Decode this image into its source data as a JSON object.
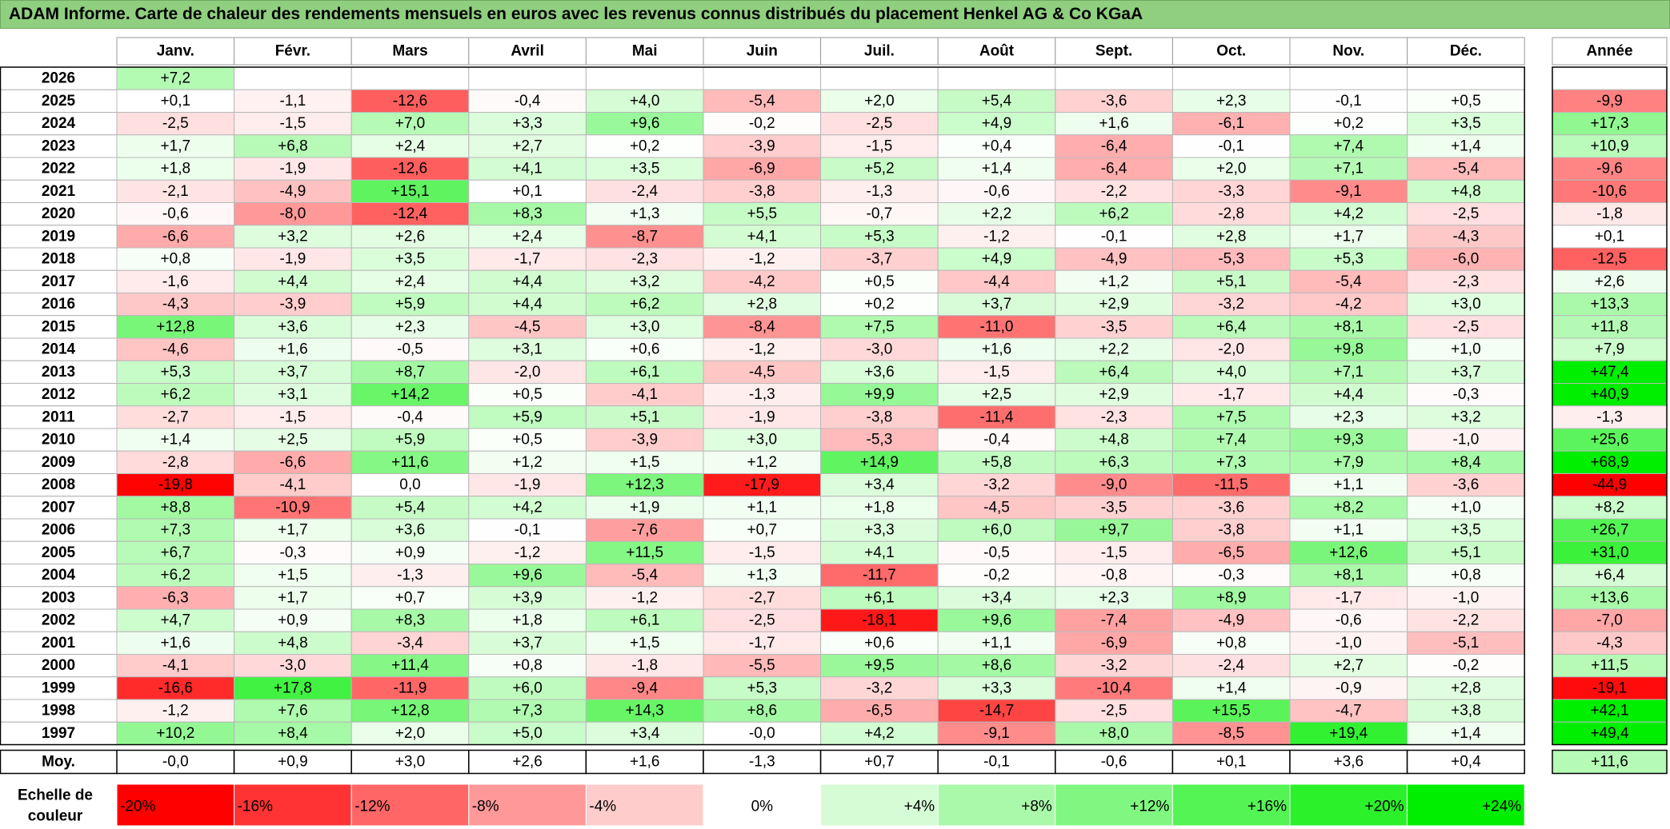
{
  "title": "ADAM Informe. Carte de chaleur des rendements mensuels en euros avec les revenus connus distribués du placement Henkel AG & Co KGaA",
  "chart_data": {
    "type": "heatmap",
    "title": "ADAM Informe. Carte de chaleur des rendements mensuels en euros avec les revenus connus distribués du placement Henkel AG & Co KGaA",
    "months": [
      "Janv.",
      "Févr.",
      "Mars",
      "Avril",
      "Mai",
      "Juin",
      "Juil.",
      "Août",
      "Sept.",
      "Oct.",
      "Nov.",
      "Déc."
    ],
    "year_header": "Année",
    "rows": [
      {
        "year": "2026",
        "values": [
          "+7,2",
          "",
          "",
          "",
          "",
          "",
          "",
          "",
          "",
          "",
          "",
          ""
        ],
        "annual": ""
      },
      {
        "year": "2025",
        "values": [
          "+0,1",
          "-1,1",
          "-12,6",
          "-0,4",
          "+4,0",
          "-5,4",
          "+2,0",
          "+5,4",
          "-3,6",
          "+2,3",
          "-0,1",
          "+0,5"
        ],
        "annual": "-9,9"
      },
      {
        "year": "2024",
        "values": [
          "-2,5",
          "-1,5",
          "+7,0",
          "+3,3",
          "+9,6",
          "-0,2",
          "-2,5",
          "+4,9",
          "+1,6",
          "-6,1",
          "+0,2",
          "+3,5"
        ],
        "annual": "+17,3"
      },
      {
        "year": "2023",
        "values": [
          "+1,7",
          "+6,8",
          "+2,4",
          "+2,7",
          "+0,2",
          "-3,9",
          "-1,5",
          "+0,4",
          "-6,4",
          "-0,1",
          "+7,4",
          "+1,4"
        ],
        "annual": "+10,9"
      },
      {
        "year": "2022",
        "values": [
          "+1,8",
          "-1,9",
          "-12,6",
          "+4,1",
          "+3,5",
          "-6,9",
          "+5,2",
          "+1,4",
          "-6,4",
          "+2,0",
          "+7,1",
          "-5,4"
        ],
        "annual": "-9,6"
      },
      {
        "year": "2021",
        "values": [
          "-2,1",
          "-4,9",
          "+15,1",
          "+0,1",
          "-2,4",
          "-3,8",
          "-1,3",
          "-0,6",
          "-2,2",
          "-3,3",
          "-9,1",
          "+4,8"
        ],
        "annual": "-10,6"
      },
      {
        "year": "2020",
        "values": [
          "-0,6",
          "-8,0",
          "-12,4",
          "+8,3",
          "+1,3",
          "+5,5",
          "-0,7",
          "+2,2",
          "+6,2",
          "-2,8",
          "+4,2",
          "-2,5"
        ],
        "annual": "-1,8"
      },
      {
        "year": "2019",
        "values": [
          "-6,6",
          "+3,2",
          "+2,6",
          "+2,4",
          "-8,7",
          "+4,1",
          "+5,3",
          "-1,2",
          "-0,1",
          "+2,8",
          "+1,7",
          "-4,3"
        ],
        "annual": "+0,1"
      },
      {
        "year": "2018",
        "values": [
          "+0,8",
          "-1,9",
          "+3,5",
          "-1,7",
          "-2,3",
          "-1,2",
          "-3,7",
          "+4,9",
          "-4,9",
          "-5,3",
          "+5,3",
          "-6,0"
        ],
        "annual": "-12,5"
      },
      {
        "year": "2017",
        "values": [
          "-1,6",
          "+4,4",
          "+2,4",
          "+4,4",
          "+3,2",
          "-4,2",
          "+0,5",
          "-4,4",
          "+1,2",
          "+5,1",
          "-5,4",
          "-2,3"
        ],
        "annual": "+2,6"
      },
      {
        "year": "2016",
        "values": [
          "-4,3",
          "-3,9",
          "+5,9",
          "+4,4",
          "+6,2",
          "+2,8",
          "+0,2",
          "+3,7",
          "+2,9",
          "-3,2",
          "-4,2",
          "+3,0"
        ],
        "annual": "+13,3"
      },
      {
        "year": "2015",
        "values": [
          "+12,8",
          "+3,6",
          "+2,3",
          "-4,5",
          "+3,0",
          "-8,4",
          "+7,5",
          "-11,0",
          "-3,5",
          "+6,4",
          "+8,1",
          "-2,5"
        ],
        "annual": "+11,8"
      },
      {
        "year": "2014",
        "values": [
          "-4,6",
          "+1,6",
          "-0,5",
          "+3,1",
          "+0,6",
          "-1,2",
          "-3,0",
          "+1,6",
          "+2,2",
          "-2,0",
          "+9,8",
          "+1,0"
        ],
        "annual": "+7,9"
      },
      {
        "year": "2013",
        "values": [
          "+5,3",
          "+3,7",
          "+8,7",
          "-2,0",
          "+6,1",
          "-4,5",
          "+3,6",
          "-1,5",
          "+6,4",
          "+4,0",
          "+7,1",
          "+3,7"
        ],
        "annual": "+47,4"
      },
      {
        "year": "2012",
        "values": [
          "+6,2",
          "+3,1",
          "+14,2",
          "+0,5",
          "-4,1",
          "-1,3",
          "+9,9",
          "+2,5",
          "+2,9",
          "-1,7",
          "+4,4",
          "-0,3"
        ],
        "annual": "+40,9"
      },
      {
        "year": "2011",
        "values": [
          "-2,7",
          "-1,5",
          "-0,4",
          "+5,9",
          "+5,1",
          "-1,9",
          "-3,8",
          "-11,4",
          "-2,3",
          "+7,5",
          "+2,3",
          "+3,2"
        ],
        "annual": "-1,3"
      },
      {
        "year": "2010",
        "values": [
          "+1,4",
          "+2,5",
          "+5,9",
          "+0,5",
          "-3,9",
          "+3,0",
          "-5,3",
          "-0,4",
          "+4,8",
          "+7,4",
          "+9,3",
          "-1,0"
        ],
        "annual": "+25,6"
      },
      {
        "year": "2009",
        "values": [
          "-2,8",
          "-6,6",
          "+11,6",
          "+1,2",
          "+1,5",
          "+1,2",
          "+14,9",
          "+5,8",
          "+6,3",
          "+7,3",
          "+7,9",
          "+8,4"
        ],
        "annual": "+68,9"
      },
      {
        "year": "2008",
        "values": [
          "-19,8",
          "-4,1",
          "0,0",
          "-1,9",
          "+12,3",
          "-17,9",
          "+3,4",
          "-3,2",
          "-9,0",
          "-11,5",
          "+1,1",
          "-3,6"
        ],
        "annual": "-44,9"
      },
      {
        "year": "2007",
        "values": [
          "+8,8",
          "-10,9",
          "+5,4",
          "+4,2",
          "+1,9",
          "+1,1",
          "+1,8",
          "-4,5",
          "-3,5",
          "-3,6",
          "+8,2",
          "+1,0"
        ],
        "annual": "+8,2"
      },
      {
        "year": "2006",
        "values": [
          "+7,3",
          "+1,7",
          "+3,6",
          "-0,1",
          "-7,6",
          "+0,7",
          "+3,3",
          "+6,0",
          "+9,7",
          "-3,8",
          "+1,1",
          "+3,5"
        ],
        "annual": "+26,7"
      },
      {
        "year": "2005",
        "values": [
          "+6,7",
          "-0,3",
          "+0,9",
          "-1,2",
          "+11,5",
          "-1,5",
          "+4,1",
          "-0,5",
          "-1,5",
          "-6,5",
          "+12,6",
          "+5,1"
        ],
        "annual": "+31,0"
      },
      {
        "year": "2004",
        "values": [
          "+6,2",
          "+1,5",
          "-1,3",
          "+9,6",
          "-5,4",
          "+1,3",
          "-11,7",
          "-0,2",
          "-0,8",
          "-0,3",
          "+8,1",
          "+0,8"
        ],
        "annual": "+6,4"
      },
      {
        "year": "2003",
        "values": [
          "-6,3",
          "+1,7",
          "+0,7",
          "+3,9",
          "-1,2",
          "-2,7",
          "+6,1",
          "+3,4",
          "+2,3",
          "+8,9",
          "-1,7",
          "-1,0"
        ],
        "annual": "+13,6"
      },
      {
        "year": "2002",
        "values": [
          "+4,7",
          "+0,9",
          "+8,3",
          "+1,8",
          "+6,1",
          "-2,5",
          "-18,1",
          "+9,6",
          "-7,4",
          "-4,9",
          "-0,6",
          "-2,2"
        ],
        "annual": "-7,0"
      },
      {
        "year": "2001",
        "values": [
          "+1,6",
          "+4,8",
          "-3,4",
          "+3,7",
          "+1,5",
          "-1,7",
          "+0,6",
          "+1,1",
          "-6,9",
          "+0,8",
          "-1,0",
          "-5,1"
        ],
        "annual": "-4,3"
      },
      {
        "year": "2000",
        "values": [
          "-4,1",
          "-3,0",
          "+11,4",
          "+0,8",
          "-1,8",
          "-5,5",
          "+9,5",
          "+8,6",
          "-3,2",
          "-2,4",
          "+2,7",
          "-0,2"
        ],
        "annual": "+11,5"
      },
      {
        "year": "1999",
        "values": [
          "-16,6",
          "+17,8",
          "-11,9",
          "+6,0",
          "-9,4",
          "+5,3",
          "-3,2",
          "+3,3",
          "-10,4",
          "+1,4",
          "-0,9",
          "+2,8"
        ],
        "annual": "-19,1"
      },
      {
        "year": "1998",
        "values": [
          "-1,2",
          "+7,6",
          "+12,8",
          "+7,3",
          "+14,3",
          "+8,6",
          "-6,5",
          "-14,7",
          "-2,5",
          "+15,5",
          "-4,7",
          "+3,8"
        ],
        "annual": "+42,1"
      },
      {
        "year": "1997",
        "values": [
          "+10,2",
          "+8,4",
          "+2,0",
          "+5,0",
          "+3,4",
          "-0,0",
          "+4,2",
          "-9,1",
          "+8,0",
          "-8,5",
          "+19,4",
          "+1,4"
        ],
        "annual": "+49,4"
      }
    ],
    "average": {
      "label": "Moy.",
      "values": [
        "-0,0",
        "+0,9",
        "+3,0",
        "+2,6",
        "+1,6",
        "-1,3",
        "+0,7",
        "-0,1",
        "-0,6",
        "+0,1",
        "+3,6",
        "+0,4"
      ],
      "annual": "+11,6"
    },
    "scale": {
      "label_line1": "Echelle de",
      "label_line2": "couleur",
      "steps": [
        "-20%",
        "-16%",
        "-12%",
        "-8%",
        "-4%",
        "0%",
        "+4%",
        "+8%",
        "+12%",
        "+16%",
        "+20%",
        "+24%"
      ],
      "step_values": [
        -20,
        -16,
        -12,
        -8,
        -4,
        0,
        4,
        8,
        12,
        16,
        20,
        24
      ]
    },
    "colors": {
      "negative": "#ff0000",
      "positive": "#00e000",
      "neutral": "#ffffff",
      "title_bar": "#8fcf7f"
    }
  }
}
